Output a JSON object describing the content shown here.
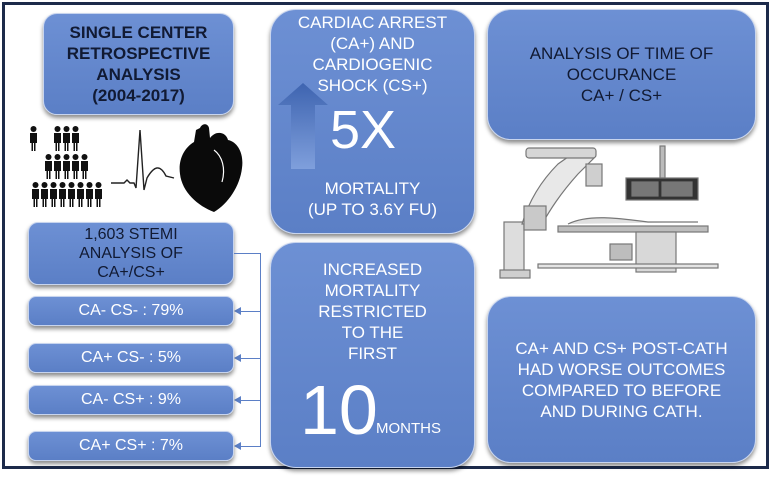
{
  "single_center": {
    "line1": "SINGLE CENTER",
    "line2": "RETROSPECTIVE",
    "line3": "ANALYSIS",
    "line4": "(2004-2017)"
  },
  "cardiac": {
    "line1": "CARDIAC ARREST",
    "line2": "(CA+) AND",
    "line3": "CARDIOGENIC",
    "line4": "SHOCK (CS+)",
    "big": "5X",
    "line5": "MORTALITY",
    "line6": "(UP TO 3.6Y FU)"
  },
  "time": {
    "line1": "ANALYSIS OF TIME OF",
    "line2": "OCCURANCE",
    "line3": "CA+ / CS+"
  },
  "stemi": {
    "line1": "1,603 STEMI",
    "line2": "ANALYSIS OF",
    "line3": "CA+/CS+"
  },
  "subgroups": [
    "CA- CS- : 79%",
    "CA+ CS- : 5%",
    "CA- CS+ : 9%",
    "CA+ CS+ : 7%"
  ],
  "increased": {
    "line1": "INCREASED",
    "line2": "MORTALITY",
    "line3": "RESTRICTED",
    "line4": "TO THE",
    "line5": "FIRST",
    "big": "10",
    "unit": "MONTHS"
  },
  "outcomes": {
    "line1": "CA+ AND CS+ POST-CATH",
    "line2": "HAD WORSE OUTCOMES",
    "line3": "COMPARED TO BEFORE",
    "line4": "AND DURING CATH."
  },
  "colors": {
    "box": "#6d90d4",
    "frame": "#1c2a4a",
    "arrow": "#5b7fc6"
  },
  "icons": [
    "people-icon",
    "ecg-waveform-icon",
    "heart-icon",
    "up-arrow-icon",
    "cath-lab-icon"
  ]
}
